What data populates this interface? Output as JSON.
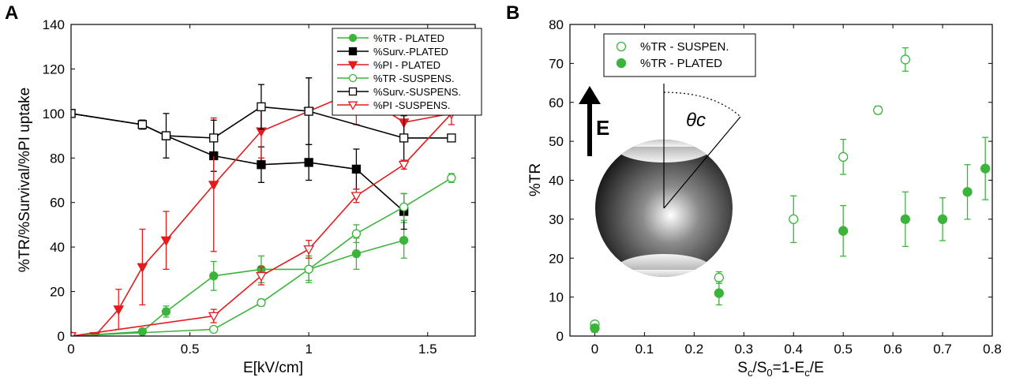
{
  "chart_data": [
    {
      "panel": "A",
      "type": "line",
      "xlabel": "E[kV/cm]",
      "ylabel": "%TR/%Survival/%PI uptake",
      "xlim": [
        0,
        1.7
      ],
      "ylim": [
        0,
        140
      ],
      "xticks": [
        "0",
        "0.5",
        "1",
        "1.5"
      ],
      "xtick_values": [
        0,
        0.5,
        1,
        1.5
      ],
      "yticks": [
        "0",
        "20",
        "40",
        "60",
        "80",
        "100",
        "120",
        "140"
      ],
      "ytick_values": [
        0,
        20,
        40,
        60,
        80,
        100,
        120,
        140
      ],
      "legend_position": "top-right",
      "grid": false,
      "series": [
        {
          "name": "%TR - PLATED",
          "color": "#3cb43c",
          "marker": "filled-circle",
          "x": [
            0,
            0.3,
            0.4,
            0.6,
            0.8,
            1.0,
            1.2,
            1.4
          ],
          "y": [
            0,
            2,
            11,
            27,
            30,
            30,
            37,
            43
          ],
          "err": [
            0,
            1,
            2.5,
            6.5,
            6,
            6,
            7,
            8
          ]
        },
        {
          "name": "%Surv.-PLATED",
          "color": "#000000",
          "marker": "filled-square",
          "x": [
            0,
            0.3,
            0.4,
            0.6,
            0.8,
            1.0,
            1.2,
            1.4
          ],
          "y": [
            100,
            95,
            90,
            81,
            77,
            78,
            75,
            56
          ],
          "err": [
            0,
            2,
            10,
            7,
            8,
            8,
            9,
            8
          ]
        },
        {
          "name": "%PI - PLATED",
          "color": "#e41a1c",
          "marker": "filled-triangle-down",
          "x": [
            0,
            0.1,
            0.2,
            0.3,
            0.4,
            0.6,
            0.8,
            1.0,
            1.2,
            1.4,
            1.6
          ],
          "y": [
            0,
            0,
            12,
            31,
            43,
            68,
            92,
            101,
            110,
            96,
            100
          ],
          "err": [
            0,
            0,
            9,
            17,
            13,
            30,
            12,
            15,
            15,
            8,
            5
          ]
        },
        {
          "name": "%TR -SUSPENS.",
          "color": "#3cb43c",
          "marker": "open-circle",
          "x": [
            0,
            0.6,
            0.8,
            1.0,
            1.2,
            1.4,
            1.6
          ],
          "y": [
            0,
            3,
            15,
            30,
            46,
            58,
            71
          ],
          "err": [
            0,
            1,
            1.5,
            5,
            4,
            6,
            2
          ]
        },
        {
          "name": "%Surv.-SUSPENS.",
          "color": "#000000",
          "marker": "open-square",
          "x": [
            0,
            0.3,
            0.4,
            0.6,
            0.8,
            1.0,
            1.4,
            1.6
          ],
          "y": [
            100,
            95,
            90,
            89,
            103,
            101,
            89,
            89
          ],
          "err": [
            0,
            2,
            0,
            8,
            10,
            15,
            10,
            0
          ]
        },
        {
          "name": "%PI -SUSPENS.",
          "color": "#e41a1c",
          "marker": "open-triangle-down",
          "x": [
            0,
            0.6,
            0.8,
            1.0,
            1.2,
            1.4,
            1.6
          ],
          "y": [
            0,
            9,
            27,
            39,
            63,
            77,
            100
          ],
          "err": [
            0,
            3,
            4,
            4,
            3,
            2,
            0
          ]
        }
      ]
    },
    {
      "panel": "B",
      "type": "scatter",
      "xlabel": "S_c/S_0=1-E_c/E",
      "ylabel": "%TR",
      "xlim": [
        -0.05,
        0.8
      ],
      "ylim": [
        0,
        80
      ],
      "xticks": [
        "0",
        "0.1",
        "0.2",
        "0.3",
        "0.4",
        "0.5",
        "0.6",
        "0.7",
        "0.8"
      ],
      "xtick_values": [
        0,
        0.1,
        0.2,
        0.3,
        0.4,
        0.5,
        0.6,
        0.7,
        0.8
      ],
      "yticks": [
        "0",
        "10",
        "20",
        "30",
        "40",
        "50",
        "60",
        "70",
        "80"
      ],
      "ytick_values": [
        0,
        10,
        20,
        30,
        40,
        50,
        60,
        70,
        80
      ],
      "legend_position": "top-left",
      "grid": false,
      "inset": {
        "arrow_label": "E",
        "angle_label": "θc"
      },
      "series": [
        {
          "name": "%TR - SUSPEN.",
          "color": "#3cb43c",
          "marker": "open-circle",
          "x": [
            0,
            0.25,
            0.4,
            0.5,
            0.57,
            0.625
          ],
          "y": [
            3,
            15,
            30,
            46,
            58,
            71
          ],
          "err": [
            0,
            1.5,
            6,
            4.5,
            1,
            3
          ]
        },
        {
          "name": "%TR - PLATED",
          "color": "#3cb43c",
          "marker": "filled-circle",
          "x": [
            0,
            0.25,
            0.5,
            0.625,
            0.7,
            0.75,
            0.786
          ],
          "y": [
            2,
            11,
            27,
            30,
            30,
            37,
            43
          ],
          "err": [
            1,
            3,
            6.5,
            7,
            5.5,
            7,
            8
          ]
        }
      ]
    }
  ]
}
